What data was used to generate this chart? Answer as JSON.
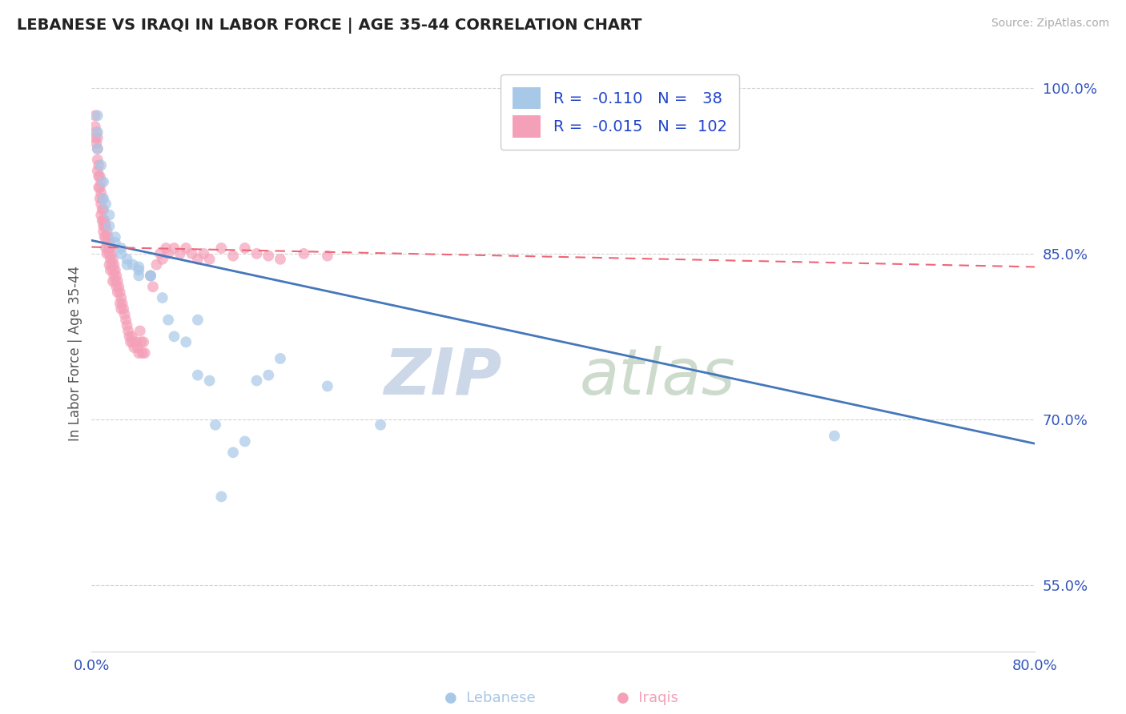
{
  "title": "LEBANESE VS IRAQI IN LABOR FORCE | AGE 35-44 CORRELATION CHART",
  "source": "Source: ZipAtlas.com",
  "ylabel": "In Labor Force | Age 35-44",
  "xlim": [
    0.0,
    0.8
  ],
  "ylim": [
    0.49,
    1.03
  ],
  "xtick_positions": [
    0.0,
    0.8
  ],
  "xticklabels": [
    "0.0%",
    "80.0%"
  ],
  "ytick_positions": [
    0.55,
    0.7,
    0.85,
    1.0
  ],
  "ytick_labels": [
    "55.0%",
    "70.0%",
    "85.0%",
    "100.0%"
  ],
  "grid_lines": [
    0.55,
    0.7,
    0.85,
    1.0
  ],
  "legend_r_lebanese": "-0.110",
  "legend_n_lebanese": "38",
  "legend_r_iraqis": "-0.015",
  "legend_n_iraqis": "102",
  "lebanese_color": "#a8c8e8",
  "iraqi_color": "#f4a0b8",
  "lebanese_line_color": "#4477bb",
  "iraqi_line_color": "#ee6677",
  "leb_trend_x0": 0.0,
  "leb_trend_y0": 0.862,
  "leb_trend_x1": 0.8,
  "leb_trend_y1": 0.678,
  "irq_trend_x0": 0.0,
  "irq_trend_y0": 0.856,
  "irq_trend_x1": 0.8,
  "irq_trend_y1": 0.838,
  "lebanese_x": [
    0.005,
    0.005,
    0.005,
    0.008,
    0.01,
    0.01,
    0.012,
    0.015,
    0.015,
    0.02,
    0.02,
    0.025,
    0.025,
    0.03,
    0.03,
    0.035,
    0.04,
    0.04,
    0.04,
    0.05,
    0.05,
    0.06,
    0.065,
    0.07,
    0.08,
    0.09,
    0.09,
    0.1,
    0.105,
    0.11,
    0.12,
    0.13,
    0.14,
    0.15,
    0.16,
    0.2,
    0.245,
    0.63
  ],
  "lebanese_y": [
    0.975,
    0.96,
    0.945,
    0.93,
    0.915,
    0.9,
    0.895,
    0.885,
    0.875,
    0.865,
    0.86,
    0.855,
    0.85,
    0.845,
    0.84,
    0.84,
    0.838,
    0.835,
    0.83,
    0.83,
    0.83,
    0.81,
    0.79,
    0.775,
    0.77,
    0.79,
    0.74,
    0.735,
    0.695,
    0.63,
    0.67,
    0.68,
    0.735,
    0.74,
    0.755,
    0.73,
    0.695,
    0.685
  ],
  "iraqi_x": [
    0.003,
    0.003,
    0.003,
    0.004,
    0.004,
    0.005,
    0.005,
    0.005,
    0.005,
    0.006,
    0.006,
    0.006,
    0.007,
    0.007,
    0.007,
    0.008,
    0.008,
    0.008,
    0.008,
    0.009,
    0.009,
    0.009,
    0.01,
    0.01,
    0.01,
    0.01,
    0.011,
    0.011,
    0.011,
    0.012,
    0.012,
    0.012,
    0.013,
    0.013,
    0.013,
    0.014,
    0.014,
    0.015,
    0.015,
    0.015,
    0.016,
    0.016,
    0.016,
    0.017,
    0.017,
    0.018,
    0.018,
    0.018,
    0.019,
    0.019,
    0.02,
    0.02,
    0.021,
    0.021,
    0.022,
    0.022,
    0.023,
    0.024,
    0.024,
    0.025,
    0.025,
    0.026,
    0.027,
    0.028,
    0.029,
    0.03,
    0.031,
    0.032,
    0.033,
    0.034,
    0.035,
    0.036,
    0.038,
    0.039,
    0.04,
    0.041,
    0.042,
    0.043,
    0.044,
    0.045,
    0.05,
    0.052,
    0.055,
    0.058,
    0.06,
    0.063,
    0.065,
    0.07,
    0.075,
    0.08,
    0.085,
    0.09,
    0.095,
    0.1,
    0.11,
    0.12,
    0.13,
    0.14,
    0.15,
    0.16,
    0.18,
    0.2
  ],
  "iraqi_y": [
    0.975,
    0.965,
    0.955,
    0.96,
    0.95,
    0.955,
    0.945,
    0.935,
    0.925,
    0.93,
    0.92,
    0.91,
    0.92,
    0.91,
    0.9,
    0.915,
    0.905,
    0.895,
    0.885,
    0.9,
    0.89,
    0.88,
    0.89,
    0.88,
    0.875,
    0.87,
    0.88,
    0.875,
    0.865,
    0.875,
    0.865,
    0.855,
    0.87,
    0.86,
    0.85,
    0.865,
    0.855,
    0.86,
    0.85,
    0.84,
    0.855,
    0.845,
    0.835,
    0.85,
    0.84,
    0.845,
    0.835,
    0.825,
    0.84,
    0.83,
    0.835,
    0.825,
    0.83,
    0.82,
    0.825,
    0.815,
    0.82,
    0.815,
    0.805,
    0.81,
    0.8,
    0.805,
    0.8,
    0.795,
    0.79,
    0.785,
    0.78,
    0.775,
    0.77,
    0.775,
    0.77,
    0.765,
    0.77,
    0.765,
    0.76,
    0.78,
    0.77,
    0.76,
    0.77,
    0.76,
    0.83,
    0.82,
    0.84,
    0.85,
    0.845,
    0.855,
    0.85,
    0.855,
    0.85,
    0.855,
    0.85,
    0.845,
    0.85,
    0.845,
    0.855,
    0.848,
    0.855,
    0.85,
    0.848,
    0.845,
    0.85,
    0.848
  ]
}
